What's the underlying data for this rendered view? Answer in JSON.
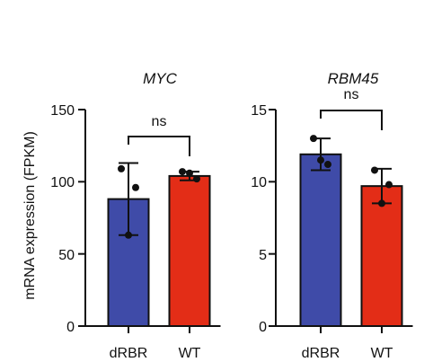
{
  "figure": {
    "ylabel": "mRNA expression (FPKM)"
  },
  "chart_data": [
    {
      "type": "bar",
      "title": "MYC",
      "categories": [
        "dRBR",
        "WT"
      ],
      "values": [
        88,
        104
      ],
      "error": [
        25,
        3
      ],
      "points": [
        [
          109,
          96,
          63
        ],
        [
          107,
          102,
          106
        ]
      ],
      "ylim": [
        0,
        150
      ],
      "yticks": [
        "0",
        "50",
        "100",
        "150"
      ],
      "ytick_values": [
        0,
        50,
        100,
        150
      ],
      "significance": "ns",
      "colors": [
        "#3F4BA8",
        "#E32D17"
      ]
    },
    {
      "type": "bar",
      "title": "RBM45",
      "categories": [
        "dRBR",
        "WT"
      ],
      "values": [
        11.9,
        9.7
      ],
      "error": [
        1.1,
        1.2
      ],
      "points": [
        [
          13.0,
          11.2,
          11.5
        ],
        [
          10.8,
          9.8,
          8.5
        ]
      ],
      "ylim": [
        0,
        15
      ],
      "yticks": [
        "0",
        "5",
        "10",
        "15"
      ],
      "ytick_values": [
        0,
        5,
        10,
        15
      ],
      "significance": "ns",
      "colors": [
        "#3F4BA8",
        "#E32D17"
      ]
    }
  ]
}
